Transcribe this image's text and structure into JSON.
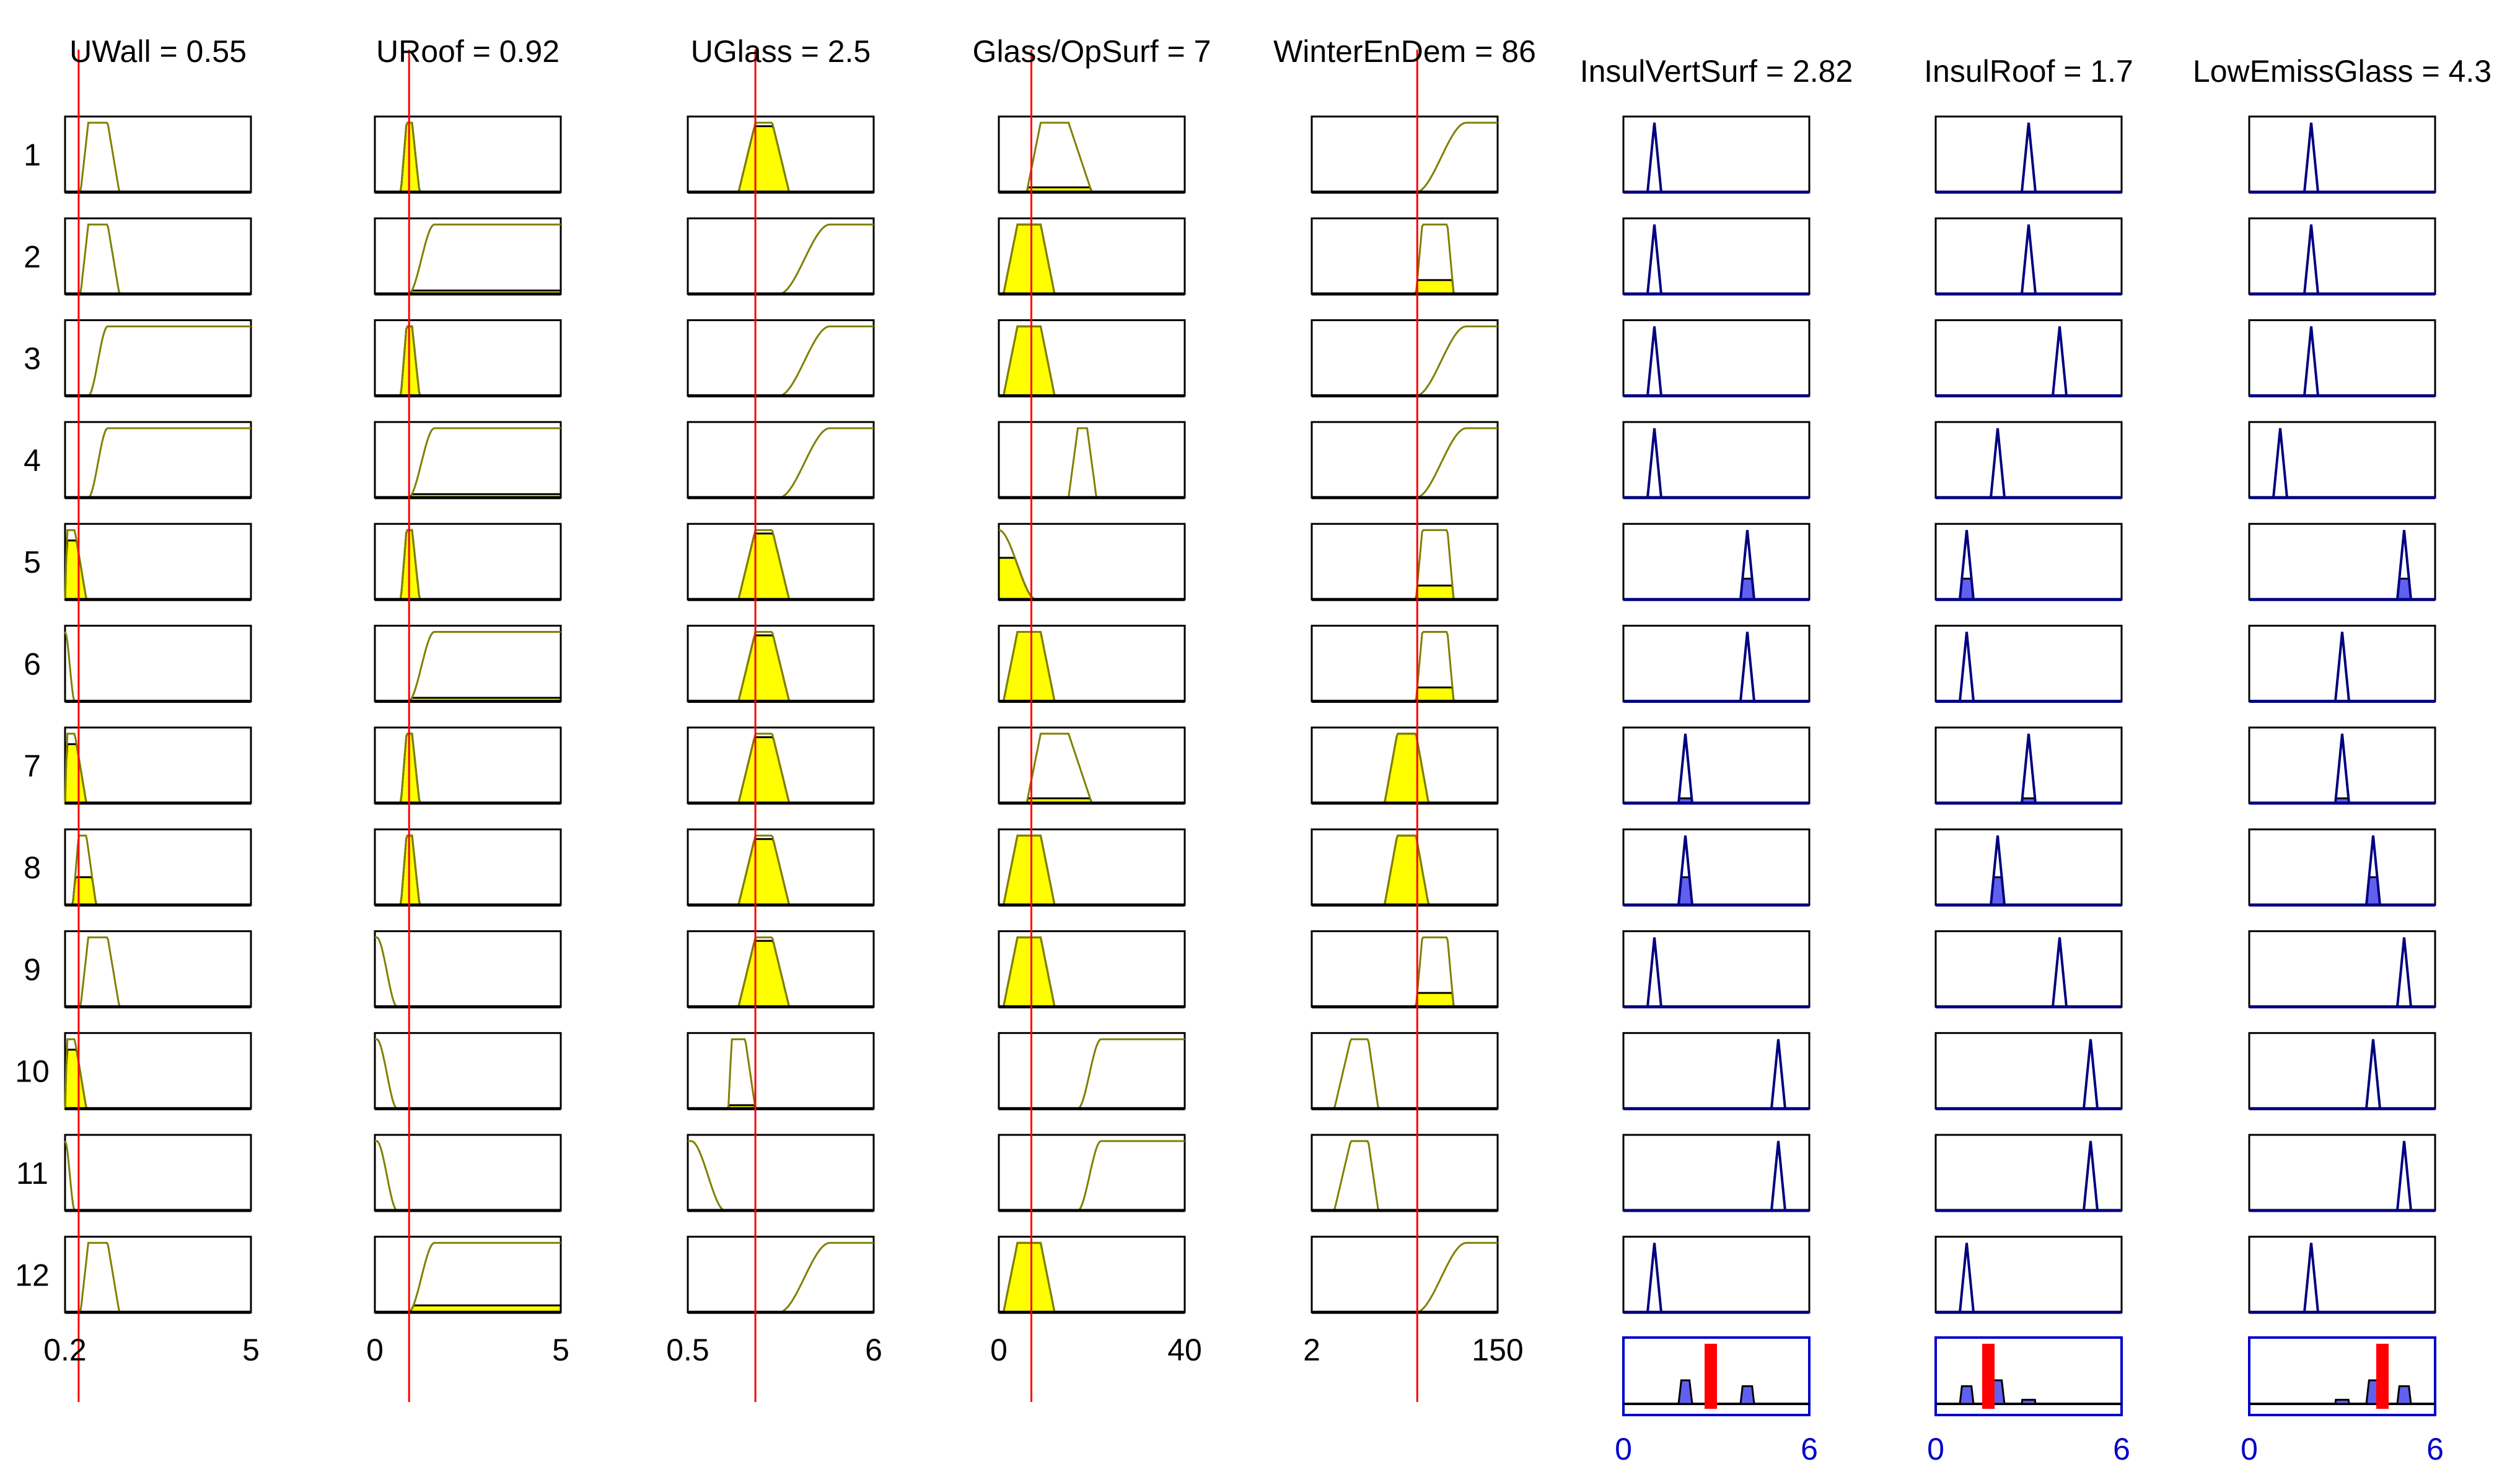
{
  "chart_data": {
    "type": "fuzzy-rule-viewer",
    "rule_numbers": [
      "1",
      "2",
      "3",
      "4",
      "5",
      "6",
      "7",
      "8",
      "9",
      "10",
      "11",
      "12"
    ],
    "inputs": [
      {
        "label": "UWall = 0.55",
        "name": "UWall",
        "value": 0.55,
        "range": [
          0.2,
          5
        ],
        "tick_labels": [
          "0.2",
          "5"
        ],
        "rules": [
          {
            "type": "trap",
            "params": [
              0.6,
              0.8,
              1.3,
              1.6
            ],
            "fire": 0
          },
          {
            "type": "trap",
            "params": [
              0.6,
              0.8,
              1.3,
              1.6
            ],
            "fire": 0
          },
          {
            "type": "smf",
            "params": [
              0.8,
              1.3
            ],
            "fire": 0
          },
          {
            "type": "smf",
            "params": [
              0.8,
              1.3
            ],
            "fire": 0
          },
          {
            "type": "trap",
            "params": [
              0.2,
              0.25,
              0.45,
              0.75
            ],
            "fire": 0.85
          },
          {
            "type": "zmf",
            "params": [
              0.2,
              0.45
            ],
            "fire": 0
          },
          {
            "type": "trap",
            "params": [
              0.2,
              0.25,
              0.45,
              0.75
            ],
            "fire": 0.85
          },
          {
            "type": "trap",
            "params": [
              0.4,
              0.55,
              0.75,
              1.0
            ],
            "fire": 0.4
          },
          {
            "type": "trap",
            "params": [
              0.6,
              0.8,
              1.3,
              1.6
            ],
            "fire": 0
          },
          {
            "type": "trap",
            "params": [
              0.2,
              0.25,
              0.45,
              0.75
            ],
            "fire": 0.85
          },
          {
            "type": "zmf",
            "params": [
              0.2,
              0.45
            ],
            "fire": 0
          },
          {
            "type": "trap",
            "params": [
              0.6,
              0.8,
              1.3,
              1.6
            ],
            "fire": 0
          }
        ]
      },
      {
        "label": "URoof = 0.92",
        "name": "URoof",
        "value": 0.92,
        "range": [
          0,
          5
        ],
        "tick_labels": [
          "0",
          "5"
        ],
        "rules": [
          {
            "type": "trap",
            "params": [
              0.7,
              0.85,
              1.0,
              1.2
            ],
            "fire": 1
          },
          {
            "type": "smf",
            "params": [
              0.9,
              1.6
            ],
            "fire": 0.05
          },
          {
            "type": "trap",
            "params": [
              0.7,
              0.85,
              1.0,
              1.2
            ],
            "fire": 1
          },
          {
            "type": "smf",
            "params": [
              0.9,
              1.6
            ],
            "fire": 0.05
          },
          {
            "type": "trap",
            "params": [
              0.7,
              0.85,
              1.0,
              1.2
            ],
            "fire": 1
          },
          {
            "type": "smf",
            "params": [
              0.9,
              1.6
            ],
            "fire": 0.05
          },
          {
            "type": "trap",
            "params": [
              0.7,
              0.85,
              1.0,
              1.2
            ],
            "fire": 1
          },
          {
            "type": "trap",
            "params": [
              0.7,
              0.85,
              1.0,
              1.2
            ],
            "fire": 1
          },
          {
            "type": "zmf",
            "params": [
              0.05,
              0.6
            ],
            "fire": 0
          },
          {
            "type": "zmf",
            "params": [
              0.05,
              0.6
            ],
            "fire": 0
          },
          {
            "type": "zmf",
            "params": [
              0.05,
              0.6
            ],
            "fire": 0
          },
          {
            "type": "smf",
            "params": [
              0.9,
              1.6
            ],
            "fire": 0.1
          }
        ]
      },
      {
        "label": "UGlass = 2.5",
        "name": "UGlass",
        "value": 2.5,
        "range": [
          0.5,
          6
        ],
        "tick_labels": [
          "0.5",
          "6"
        ],
        "rules": [
          {
            "type": "trap",
            "params": [
              2.0,
              2.5,
              3.0,
              3.5
            ],
            "fire": 0.95
          },
          {
            "type": "smf",
            "params": [
              3.2,
              4.7
            ],
            "fire": 0
          },
          {
            "type": "smf",
            "params": [
              3.2,
              4.7
            ],
            "fire": 0
          },
          {
            "type": "smf",
            "params": [
              3.2,
              4.7
            ],
            "fire": 0
          },
          {
            "type": "trap",
            "params": [
              2.0,
              2.5,
              3.0,
              3.5
            ],
            "fire": 0.95
          },
          {
            "type": "trap",
            "params": [
              2.0,
              2.5,
              3.0,
              3.5
            ],
            "fire": 0.95
          },
          {
            "type": "trap",
            "params": [
              2.0,
              2.5,
              3.0,
              3.5
            ],
            "fire": 0.95
          },
          {
            "type": "trap",
            "params": [
              2.0,
              2.5,
              3.0,
              3.5
            ],
            "fire": 0.95
          },
          {
            "type": "trap",
            "params": [
              2.0,
              2.5,
              3.0,
              3.5
            ],
            "fire": 0.95
          },
          {
            "type": "trap",
            "params": [
              1.7,
              1.8,
              2.2,
              2.5
            ],
            "fire": 0.05
          },
          {
            "type": "zmf",
            "params": [
              0.6,
              1.6
            ],
            "fire": 0
          },
          {
            "type": "smf",
            "params": [
              3.2,
              4.7
            ],
            "fire": 0
          }
        ]
      },
      {
        "label": "Glass/OpSurf = 7",
        "name": "Glass/OpSurf",
        "value": 7,
        "range": [
          0,
          40
        ],
        "tick_labels": [
          "0",
          "40"
        ],
        "rules": [
          {
            "type": "trap",
            "params": [
              6,
              9,
              15,
              20
            ],
            "fire": 0.07
          },
          {
            "type": "trap",
            "params": [
              1,
              4,
              9,
              12
            ],
            "fire": 1
          },
          {
            "type": "trap",
            "params": [
              1,
              4,
              9,
              12
            ],
            "fire": 1
          },
          {
            "type": "trap",
            "params": [
              15,
              17,
              19,
              21
            ],
            "fire": 0
          },
          {
            "type": "zmf",
            "params": [
              0,
              8
            ],
            "fire": 0.6
          },
          {
            "type": "trap",
            "params": [
              1,
              4,
              9,
              12
            ],
            "fire": 1
          },
          {
            "type": "trap",
            "params": [
              6,
              9,
              15,
              20
            ],
            "fire": 0.07
          },
          {
            "type": "trap",
            "params": [
              1,
              4,
              9,
              12
            ],
            "fire": 1
          },
          {
            "type": "trap",
            "params": [
              1,
              4,
              9,
              12
            ],
            "fire": 1
          },
          {
            "type": "smf",
            "params": [
              17,
              22
            ],
            "fire": 0
          },
          {
            "type": "smf",
            "params": [
              17,
              22
            ],
            "fire": 0
          },
          {
            "type": "trap",
            "params": [
              1,
              4,
              9,
              12
            ],
            "fire": 1
          }
        ]
      },
      {
        "label": "WinterEnDem = 86",
        "name": "WinterEnDem",
        "value": 86,
        "range": [
          2,
          150
        ],
        "tick_labels": [
          "2",
          "150"
        ],
        "rules": [
          {
            "type": "smf",
            "params": [
              85,
              125
            ],
            "fire": 0
          },
          {
            "type": "trap",
            "params": [
              85,
              90,
              110,
              115
            ],
            "fire": 0.2
          },
          {
            "type": "smf",
            "params": [
              85,
              125
            ],
            "fire": 0
          },
          {
            "type": "smf",
            "params": [
              85,
              125
            ],
            "fire": 0
          },
          {
            "type": "trap",
            "params": [
              85,
              90,
              110,
              115
            ],
            "fire": 0.2
          },
          {
            "type": "trap",
            "params": [
              85,
              90,
              110,
              115
            ],
            "fire": 0.2
          },
          {
            "type": "trap",
            "params": [
              60,
              70,
              85,
              95
            ],
            "fire": 1
          },
          {
            "type": "trap",
            "params": [
              60,
              70,
              85,
              95
            ],
            "fire": 1
          },
          {
            "type": "trap",
            "params": [
              85,
              90,
              110,
              115
            ],
            "fire": 0.2
          },
          {
            "type": "trap",
            "params": [
              20,
              33,
              47,
              55
            ],
            "fire": 0
          },
          {
            "type": "trap",
            "params": [
              20,
              33,
              47,
              55
            ],
            "fire": 0
          },
          {
            "type": "smf",
            "params": [
              85,
              125
            ],
            "fire": 0
          }
        ]
      }
    ],
    "outputs": [
      {
        "label": "InsulVertSurf = 2.82",
        "name": "InsulVertSurf",
        "value": 2.82,
        "range": [
          0,
          6
        ],
        "tick_labels": [
          "0",
          "6"
        ],
        "rules": [
          {
            "center": 1,
            "fire": 0
          },
          {
            "center": 1,
            "fire": 0
          },
          {
            "center": 1,
            "fire": 0
          },
          {
            "center": 1,
            "fire": 0
          },
          {
            "center": 4,
            "fire": 0.3
          },
          {
            "center": 4,
            "fire": 0
          },
          {
            "center": 2,
            "fire": 0.07
          },
          {
            "center": 2,
            "fire": 0.4
          },
          {
            "center": 1,
            "fire": 0
          },
          {
            "center": 5,
            "fire": 0
          },
          {
            "center": 5,
            "fire": 0
          },
          {
            "center": 1,
            "fire": 0
          }
        ],
        "aggregate": {
          "center": 2.82,
          "bumps": [
            {
              "center": 2,
              "height": 0.4
            },
            {
              "center": 4,
              "height": 0.3
            }
          ]
        }
      },
      {
        "label": "InsulRoof = 1.7",
        "name": "InsulRoof",
        "value": 1.7,
        "range": [
          0,
          6
        ],
        "tick_labels": [
          "0",
          "6"
        ],
        "rules": [
          {
            "center": 3,
            "fire": 0
          },
          {
            "center": 3,
            "fire": 0
          },
          {
            "center": 4,
            "fire": 0
          },
          {
            "center": 2,
            "fire": 0
          },
          {
            "center": 1,
            "fire": 0.3
          },
          {
            "center": 1,
            "fire": 0
          },
          {
            "center": 3,
            "fire": 0.07
          },
          {
            "center": 2,
            "fire": 0.4
          },
          {
            "center": 4,
            "fire": 0
          },
          {
            "center": 5,
            "fire": 0
          },
          {
            "center": 5,
            "fire": 0
          },
          {
            "center": 1,
            "fire": 0
          }
        ],
        "aggregate": {
          "center": 1.7,
          "bumps": [
            {
              "center": 1,
              "height": 0.3
            },
            {
              "center": 2,
              "height": 0.4
            },
            {
              "center": 3,
              "height": 0.07
            }
          ]
        }
      },
      {
        "label": "LowEmissGlass = 4.3",
        "name": "LowEmissGlass",
        "value": 4.3,
        "range": [
          0,
          6
        ],
        "tick_labels": [
          "0",
          "6"
        ],
        "rules": [
          {
            "center": 2,
            "fire": 0
          },
          {
            "center": 2,
            "fire": 0
          },
          {
            "center": 2,
            "fire": 0
          },
          {
            "center": 1,
            "fire": 0
          },
          {
            "center": 5,
            "fire": 0.3
          },
          {
            "center": 3,
            "fire": 0
          },
          {
            "center": 3,
            "fire": 0.07
          },
          {
            "center": 4,
            "fire": 0.4
          },
          {
            "center": 5,
            "fire": 0
          },
          {
            "center": 4,
            "fire": 0
          },
          {
            "center": 5,
            "fire": 0
          },
          {
            "center": 2,
            "fire": 0
          }
        ],
        "aggregate": {
          "center": 4.3,
          "bumps": [
            {
              "center": 3,
              "height": 0.07
            },
            {
              "center": 4,
              "height": 0.4
            },
            {
              "center": 5,
              "height": 0.3
            }
          ]
        }
      }
    ],
    "colors": {
      "input_curve": "#808000",
      "input_fill": "#ffff00",
      "output_curve": "#00007f",
      "output_fill": "#6060f0",
      "output_box": "#0000cc",
      "cursor": "#ff0000",
      "tick_out": "#0000cc"
    }
  }
}
